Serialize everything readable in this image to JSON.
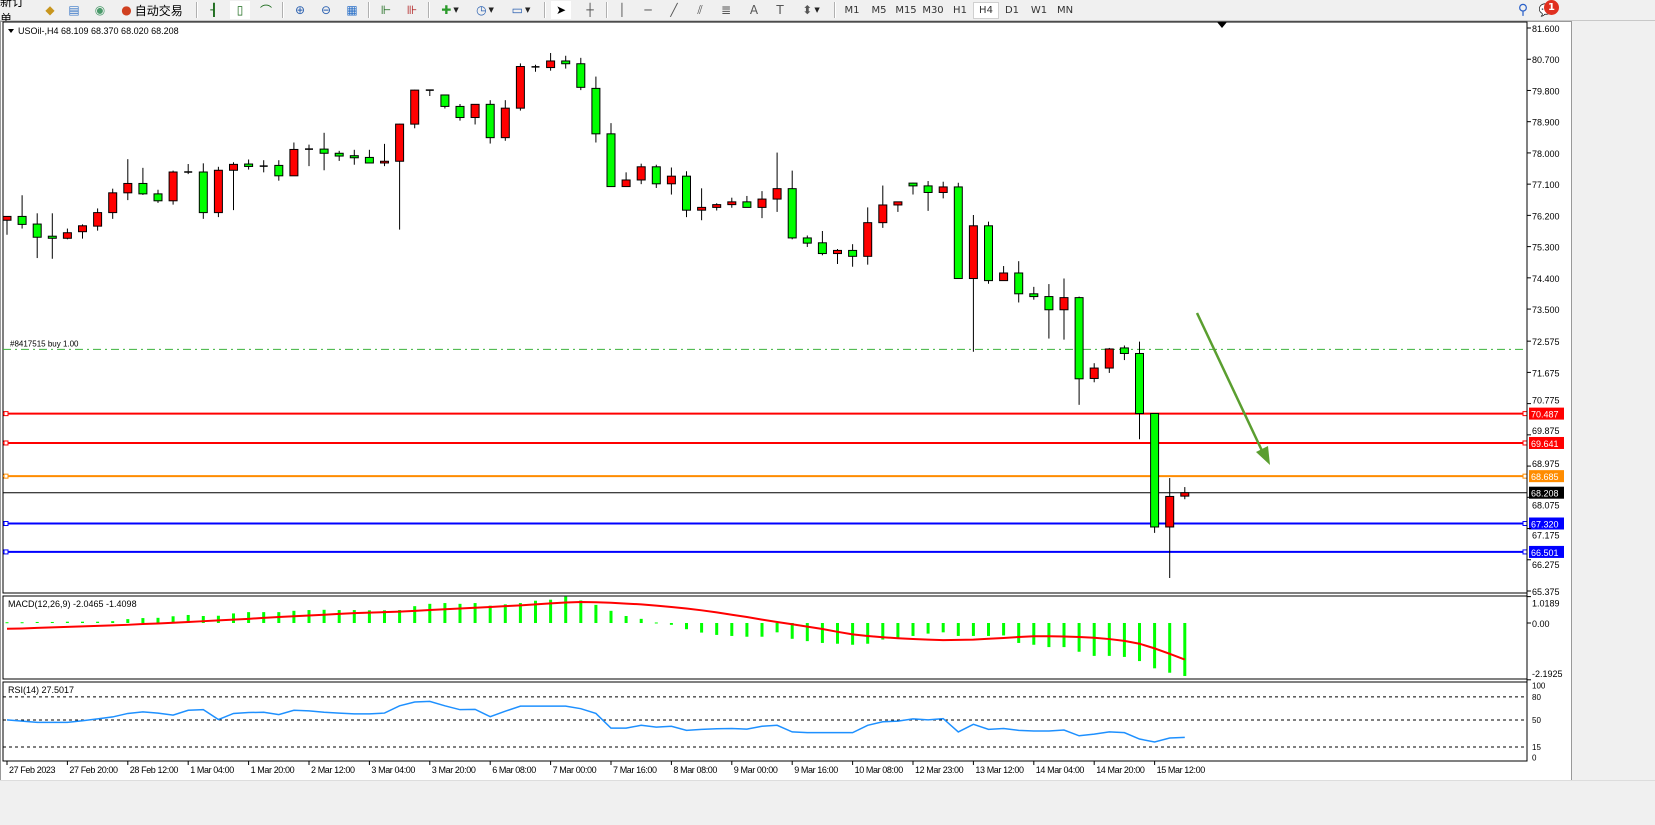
{
  "toolbar": {
    "new_order": "新订单",
    "auto_trading": "自动交易",
    "timeframes": [
      "M1",
      "M5",
      "M15",
      "M30",
      "H1",
      "H4",
      "D1",
      "W1",
      "MN"
    ],
    "active_timeframe": "H4",
    "notification_count": "1",
    "icons": [
      "market-watch-icon",
      "navigator-icon",
      "signals-icon",
      "auto-trading-icon",
      "bar-chart-icon",
      "candlestick-icon",
      "line-chart-icon",
      "zoom-in-icon",
      "zoom-out-icon",
      "tile-windows-icon",
      "auto-scroll-icon",
      "chart-shift-icon",
      "new-chart-icon",
      "periods-icon",
      "templates-icon",
      "cursor-icon",
      "crosshair-icon",
      "vertical-line-icon",
      "horizontal-line-icon",
      "trendline-icon",
      "equidistant-channel-icon",
      "fibonacci-icon",
      "text-icon",
      "text-label-icon",
      "arrows-icon",
      "search-icon",
      "notification-icon"
    ]
  },
  "chart": {
    "header": "USOil-,H4  68.109 68.370 68.020 68.208",
    "order_label": "#8417515 buy 1.00",
    "up_color": "#ff0000",
    "down_color": "#00ff00",
    "price_ticks": [
      "81.600",
      "80.700",
      "79.800",
      "78.900",
      "78.000",
      "77.100",
      "76.200",
      "75.300",
      "74.400",
      "73.500",
      "72.575",
      "71.675",
      "70.775",
      "69.875",
      "68.975",
      "68.075",
      "67.175",
      "66.275",
      "65.375"
    ],
    "levels": [
      {
        "price": "70.487",
        "color": "#ff0000"
      },
      {
        "price": "69.641",
        "color": "#ff0000"
      },
      {
        "price": "68.685",
        "color": "#ff8c00"
      },
      {
        "price": "67.320",
        "color": "#0000ff"
      },
      {
        "price": "66.501",
        "color": "#0000ff"
      }
    ],
    "bid": {
      "price": "68.208",
      "color": "#000000"
    },
    "order_line": {
      "price": 72.34,
      "color": "#3cb33c"
    },
    "arrow_color": "#5a9e2f",
    "time_labels": [
      "27 Feb 2023",
      "27 Feb 20:00",
      "28 Feb 12:00",
      "1 Mar 04:00",
      "1 Mar 20:00",
      "2 Mar 12:00",
      "3 Mar 04:00",
      "3 Mar 20:00",
      "6 Mar 08:00",
      "7 Mar 00:00",
      "7 Mar 16:00",
      "8 Mar 08:00",
      "9 Mar 00:00",
      "9 Mar 16:00",
      "10 Mar 08:00",
      "12 Mar 23:00",
      "13 Mar 12:00",
      "14 Mar 04:00",
      "14 Mar 20:00",
      "15 Mar 12:00"
    ]
  },
  "macd": {
    "label": "MACD(12,26,9) -2.0465 -1.4098",
    "ticks": [
      "1.0189",
      "0.00",
      "-2.1925"
    ],
    "hist_color": "#00ff00",
    "signal_color": "#ff0000"
  },
  "rsi": {
    "label": "RSI(14) 27.5017",
    "ticks": [
      "100",
      "80",
      "50",
      "15",
      "0"
    ],
    "color": "#1e90ff"
  },
  "chart_data": {
    "type": "candlestick",
    "symbol": "USOil-",
    "timeframe": "H4",
    "ylim": [
      65.375,
      81.6
    ],
    "open": [
      76.06,
      76.17,
      75.95,
      75.6,
      75.54,
      75.73,
      75.89,
      76.28,
      76.85,
      77.12,
      76.82,
      76.62,
      77.44,
      77.45,
      76.28,
      77.5,
      77.68,
      77.62,
      77.64,
      77.34,
      78.11,
      78.11,
      77.99,
      77.92,
      77.87,
      77.71,
      77.76,
      78.83,
      79.81,
      79.67,
      79.34,
      79.02,
      79.4,
      78.44,
      79.29,
      80.48,
      80.46,
      80.65,
      80.57,
      79.86,
      78.55,
      77.03,
      77.22,
      77.6,
      77.11,
      77.33,
      76.35,
      76.43,
      76.51,
      76.59,
      76.43,
      76.67,
      76.97,
      75.55,
      75.41,
      75.1,
      75.19,
      75.02,
      75.99,
      76.5,
      77.13,
      77.05,
      76.86,
      77.02,
      74.38,
      75.9,
      74.32,
      74.54,
      73.94,
      73.86,
      73.48,
      73.83,
      71.5,
      71.8,
      72.38,
      72.22,
      70.49,
      67.22,
      68.109
    ],
    "high": [
      76.17,
      76.78,
      76.26,
      76.26,
      75.82,
      75.94,
      76.4,
      76.97,
      77.82,
      77.57,
      76.94,
      77.49,
      77.68,
      77.7,
      77.6,
      77.73,
      77.81,
      77.79,
      77.79,
      78.3,
      78.24,
      78.58,
      78.06,
      78.09,
      78.09,
      78.26,
      78.84,
      79.82,
      79.82,
      79.68,
      79.41,
      79.4,
      79.52,
      79.52,
      80.58,
      80.54,
      80.88,
      80.8,
      80.74,
      80.2,
      78.86,
      77.44,
      77.69,
      77.66,
      77.58,
      77.47,
      76.98,
      76.55,
      76.71,
      76.76,
      76.9,
      78.01,
      77.49,
      75.62,
      75.75,
      75.23,
      75.37,
      76.43,
      77.06,
      76.59,
      77.14,
      77.19,
      77.17,
      77.14,
      76.21,
      76.02,
      74.74,
      74.88,
      74.14,
      74.22,
      74.38,
      73.86,
      71.94,
      72.38,
      72.45,
      72.56,
      70.49,
      68.63,
      68.37
    ],
    "low": [
      75.64,
      75.82,
      74.97,
      74.95,
      75.51,
      75.53,
      75.76,
      76.1,
      76.64,
      76.79,
      76.56,
      76.51,
      77.39,
      76.1,
      76.15,
      76.35,
      77.52,
      77.44,
      77.2,
      77.34,
      77.62,
      77.5,
      77.77,
      77.66,
      77.71,
      77.62,
      75.79,
      78.71,
      79.64,
      79.28,
      78.93,
      78.82,
      78.27,
      78.35,
      79.22,
      80.34,
      80.37,
      80.43,
      79.81,
      78.3,
      77.03,
      77.03,
      77.1,
      76.99,
      76.8,
      76.15,
      76.06,
      76.34,
      76.42,
      76.43,
      76.12,
      76.3,
      75.51,
      75.29,
      75.05,
      74.8,
      74.72,
      74.78,
      75.84,
      76.3,
      76.8,
      76.33,
      76.69,
      74.38,
      72.27,
      74.23,
      74.32,
      73.69,
      73.77,
      72.65,
      72.62,
      70.74,
      71.39,
      71.66,
      72.03,
      69.75,
      67.05,
      65.75,
      68.02
    ],
    "close": [
      76.17,
      75.94,
      75.57,
      75.54,
      75.7,
      75.9,
      76.28,
      76.85,
      77.12,
      76.82,
      76.62,
      77.45,
      77.45,
      76.28,
      77.5,
      77.67,
      77.61,
      77.61,
      77.34,
      78.1,
      78.11,
      77.99,
      77.91,
      77.86,
      77.71,
      77.76,
      78.83,
      79.81,
      79.81,
      79.34,
      79.02,
      79.4,
      78.44,
      79.29,
      80.49,
      80.48,
      80.65,
      80.57,
      79.89,
      78.55,
      77.03,
      77.22,
      77.6,
      77.11,
      77.33,
      76.35,
      76.43,
      76.51,
      76.59,
      76.43,
      76.67,
      76.97,
      75.55,
      75.4,
      75.1,
      75.19,
      75.02,
      75.99,
      76.5,
      76.59,
      77.05,
      76.86,
      77.02,
      74.38,
      75.9,
      74.32,
      74.54,
      73.94,
      73.86,
      73.48,
      73.83,
      71.49,
      71.8,
      72.35,
      72.22,
      70.49,
      67.22,
      68.1,
      68.208
    ],
    "macd_hist": [
      0.03,
      0.03,
      0.04,
      0.04,
      0.05,
      0.05,
      0.05,
      0.07,
      0.15,
      0.19,
      0.2,
      0.26,
      0.31,
      0.27,
      0.28,
      0.37,
      0.42,
      0.42,
      0.42,
      0.47,
      0.5,
      0.51,
      0.5,
      0.5,
      0.49,
      0.49,
      0.5,
      0.65,
      0.74,
      0.77,
      0.74,
      0.77,
      0.67,
      0.72,
      0.77,
      0.86,
      0.9,
      1.0189,
      0.87,
      0.7,
      0.47,
      0.27,
      0.16,
      0.02,
      -0.07,
      -0.24,
      -0.37,
      -0.46,
      -0.5,
      -0.53,
      -0.53,
      -0.36,
      -0.61,
      -0.7,
      -0.77,
      -0.8,
      -0.84,
      -0.8,
      -0.64,
      -0.61,
      -0.5,
      -0.41,
      -0.36,
      -0.5,
      -0.5,
      -0.5,
      -0.48,
      -0.77,
      -0.84,
      -0.93,
      -0.93,
      -1.11,
      -1.27,
      -1.27,
      -1.31,
      -1.47,
      -1.75,
      -1.92,
      -2.0465
    ],
    "macd_signal": [
      -0.22,
      -0.21,
      -0.19,
      -0.17,
      -0.15,
      -0.13,
      -0.11,
      -0.09,
      -0.07,
      -0.04,
      -0.02,
      0.01,
      0.04,
      0.07,
      0.1,
      0.13,
      0.16,
      0.2,
      0.23,
      0.26,
      0.29,
      0.32,
      0.35,
      0.38,
      0.4,
      0.42,
      0.44,
      0.47,
      0.5,
      0.53,
      0.56,
      0.59,
      0.62,
      0.65,
      0.68,
      0.72,
      0.76,
      0.79,
      0.81,
      0.8,
      0.78,
      0.75,
      0.72,
      0.67,
      0.62,
      0.56,
      0.49,
      0.41,
      0.32,
      0.23,
      0.13,
      0.04,
      -0.05,
      -0.14,
      -0.23,
      -0.34,
      -0.44,
      -0.5,
      -0.55,
      -0.59,
      -0.62,
      -0.64,
      -0.66,
      -0.65,
      -0.64,
      -0.61,
      -0.58,
      -0.54,
      -0.51,
      -0.51,
      -0.52,
      -0.54,
      -0.57,
      -0.62,
      -0.69,
      -0.8,
      -0.98,
      -1.19,
      -1.4098
    ],
    "macd_ylim": [
      -2.1925,
      1.0189
    ],
    "rsi": [
      50.2,
      48.5,
      46.9,
      46.9,
      46.9,
      49.0,
      51.5,
      54.0,
      58.5,
      60.5,
      59.0,
      56.4,
      62.6,
      63.4,
      50.6,
      58.5,
      59.7,
      60.0,
      57.0,
      62.6,
      61.8,
      60.0,
      59.0,
      58.0,
      58.0,
      59.0,
      68.4,
      73.4,
      74.2,
      68.4,
      63.4,
      63.8,
      54.3,
      61.4,
      68.0,
      68.0,
      68.0,
      68.0,
      64.7,
      58.5,
      39.4,
      39.4,
      43.1,
      40.7,
      41.9,
      36.5,
      37.8,
      38.6,
      39.0,
      38.2,
      41.9,
      43.1,
      34.5,
      33.6,
      33.6,
      33.6,
      33.6,
      43.1,
      47.7,
      48.5,
      51.4,
      50.2,
      51.8,
      34.5,
      44.4,
      37.8,
      39.0,
      36.5,
      35.7,
      35.7,
      37.0,
      29.5,
      31.6,
      34.5,
      33.6,
      25.3,
      21.4,
      26.6,
      27.5017
    ],
    "rsi_levels": [
      80,
      50,
      15
    ],
    "rsi_ylim": [
      0,
      100
    ]
  }
}
